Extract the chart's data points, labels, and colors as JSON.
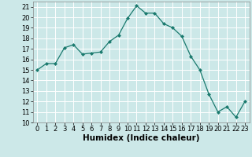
{
  "x": [
    0,
    1,
    2,
    3,
    4,
    5,
    6,
    7,
    8,
    9,
    10,
    11,
    12,
    13,
    14,
    15,
    16,
    17,
    18,
    19,
    20,
    21,
    22,
    23
  ],
  "y": [
    15.0,
    15.6,
    15.6,
    17.1,
    17.4,
    16.5,
    16.6,
    16.7,
    17.7,
    18.3,
    19.9,
    21.1,
    20.4,
    20.4,
    19.4,
    19.0,
    18.2,
    16.3,
    15.0,
    12.7,
    11.0,
    11.5,
    10.5,
    12.0
  ],
  "line_color": "#1a7a6e",
  "marker": "D",
  "marker_size": 2.0,
  "linewidth": 0.9,
  "bg_color": "#cce8e8",
  "grid_color": "#ffffff",
  "xlabel": "Humidex (Indice chaleur)",
  "xlabel_fontsize": 7.5,
  "tick_fontsize": 6.0,
  "ylim": [
    10,
    21.5
  ],
  "xlim": [
    -0.5,
    23.5
  ],
  "yticks": [
    10,
    11,
    12,
    13,
    14,
    15,
    16,
    17,
    18,
    19,
    20,
    21
  ],
  "xticks": [
    0,
    1,
    2,
    3,
    4,
    5,
    6,
    7,
    8,
    9,
    10,
    11,
    12,
    13,
    14,
    15,
    16,
    17,
    18,
    19,
    20,
    21,
    22,
    23
  ]
}
